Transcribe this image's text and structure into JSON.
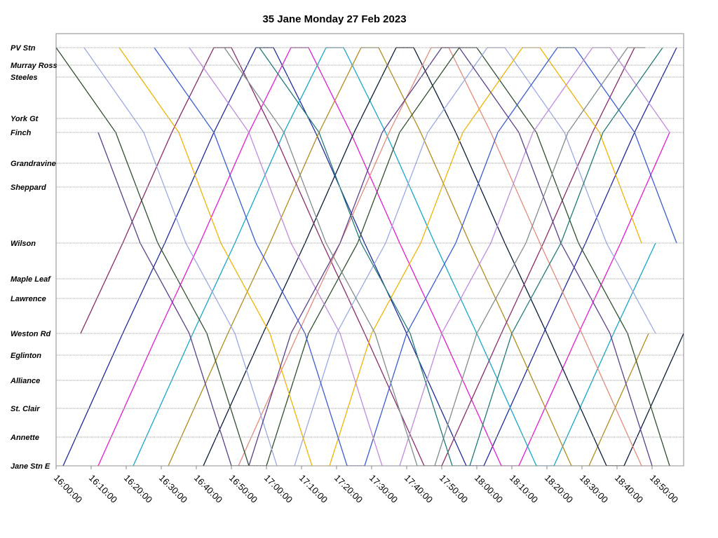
{
  "chart_data": {
    "type": "line",
    "title": "35 Jane Monday 27 Feb 2023",
    "xlim": [
      0,
      179
    ],
    "xticks": [
      {
        "value": 0,
        "label": "16:00:00"
      },
      {
        "value": 10,
        "label": "16:10:00"
      },
      {
        "value": 20,
        "label": "16:20:00"
      },
      {
        "value": 30,
        "label": "16:30:00"
      },
      {
        "value": 40,
        "label": "16:40:00"
      },
      {
        "value": 50,
        "label": "16:50:00"
      },
      {
        "value": 60,
        "label": "17:00:00"
      },
      {
        "value": 70,
        "label": "17:10:00"
      },
      {
        "value": 80,
        "label": "17:20:00"
      },
      {
        "value": 90,
        "label": "17:30:00"
      },
      {
        "value": 100,
        "label": "17:40:00"
      },
      {
        "value": 110,
        "label": "17:50:00"
      },
      {
        "value": 120,
        "label": "18:00:00"
      },
      {
        "value": 130,
        "label": "18:10:00"
      },
      {
        "value": 140,
        "label": "18:20:00"
      },
      {
        "value": 150,
        "label": "18:30:00"
      },
      {
        "value": 160,
        "label": "18:40:00"
      },
      {
        "value": 170,
        "label": "18:50:00"
      }
    ],
    "ylim": [
      0,
      617
    ],
    "yticks": [
      {
        "value": 0,
        "label": "Jane Stn E"
      },
      {
        "value": 41,
        "label": "Annette"
      },
      {
        "value": 82,
        "label": "St. Clair"
      },
      {
        "value": 122,
        "label": "Alliance"
      },
      {
        "value": 158,
        "label": "Eglinton"
      },
      {
        "value": 189,
        "label": "Weston Rd"
      },
      {
        "value": 239,
        "label": "Lawrence"
      },
      {
        "value": 267,
        "label": "Maple Leaf"
      },
      {
        "value": 318,
        "label": "Wilson"
      },
      {
        "value": 398,
        "label": "Sheppard"
      },
      {
        "value": 432,
        "label": "Grandravine"
      },
      {
        "value": 476,
        "label": "Finch"
      },
      {
        "value": 496,
        "label": "York Gt"
      },
      {
        "value": 555,
        "label": "Steeles"
      },
      {
        "value": 572,
        "label": "Murray Ross"
      },
      {
        "value": 597,
        "label": "PV Stn"
      }
    ],
    "grid": true,
    "series": [
      {
        "color": "#1f2a9c",
        "x": [
          2,
          19,
          31,
          45,
          57,
          62,
          74,
          88,
          100,
          117,
          122,
          139,
          151,
          165,
          177
        ],
        "values": [
          0,
          189,
          318,
          476,
          597,
          597,
          476,
          318,
          189,
          0,
          0,
          189,
          318,
          476,
          597
        ]
      },
      {
        "color": "#e21bd0",
        "x": [
          12,
          29,
          41,
          55,
          67,
          72,
          84,
          98,
          110,
          127,
          132,
          149,
          161,
          175
        ],
        "values": [
          0,
          189,
          318,
          476,
          597,
          597,
          476,
          318,
          189,
          0,
          0,
          189,
          318,
          476
        ]
      },
      {
        "color": "#16a6c9",
        "x": [
          22,
          39,
          51,
          65,
          77,
          82,
          94,
          108,
          120,
          137,
          142,
          159,
          171
        ],
        "values": [
          0,
          189,
          318,
          476,
          597,
          597,
          476,
          318,
          189,
          0,
          0,
          189,
          318
        ]
      },
      {
        "color": "#b08c1e",
        "x": [
          32,
          49,
          61,
          75,
          87,
          92,
          104,
          118,
          130,
          147,
          152,
          169
        ],
        "values": [
          0,
          189,
          318,
          476,
          597,
          597,
          476,
          318,
          189,
          0,
          0,
          189
        ]
      },
      {
        "color": "#0a1a3a",
        "x": [
          42,
          59,
          71,
          85,
          97,
          102,
          114,
          128,
          140,
          157,
          162,
          179
        ],
        "values": [
          0,
          189,
          318,
          476,
          597,
          597,
          476,
          318,
          189,
          0,
          0,
          189
        ]
      },
      {
        "color": "#8b2a6a",
        "x": [
          7,
          19,
          33,
          45,
          50,
          62,
          76,
          88,
          105,
          110,
          127,
          139,
          153,
          165
        ],
        "values": [
          189,
          318,
          476,
          597,
          597,
          476,
          318,
          189,
          0,
          0,
          189,
          318,
          476,
          597
        ]
      },
      {
        "color": "#e48a7a",
        "x": [
          52,
          69,
          81,
          95,
          107,
          112,
          124,
          138,
          150,
          167,
          172
        ],
        "values": [
          0,
          189,
          318,
          476,
          597,
          597,
          476,
          318,
          189,
          0,
          0
        ]
      },
      {
        "color": "#2f4f2f",
        "x": [
          0,
          17,
          29,
          43,
          55,
          60,
          72,
          86,
          98,
          115,
          120,
          137,
          149,
          163,
          175
        ],
        "values": [
          597,
          476,
          318,
          189,
          0,
          0,
          189,
          318,
          476,
          597,
          597,
          476,
          318,
          189,
          0
        ]
      },
      {
        "color": "#9aa8e6",
        "x": [
          8,
          25,
          37,
          51,
          63,
          68,
          80,
          94,
          106,
          123,
          128,
          145,
          157,
          171
        ],
        "values": [
          597,
          476,
          318,
          189,
          0,
          0,
          189,
          318,
          476,
          597,
          597,
          476,
          318,
          189
        ]
      },
      {
        "color": "#f0b400",
        "x": [
          18,
          35,
          47,
          61,
          73,
          78,
          90,
          104,
          116,
          133,
          138,
          155,
          167
        ],
        "values": [
          597,
          476,
          318,
          189,
          0,
          0,
          189,
          318,
          476,
          597,
          597,
          476,
          318
        ]
      },
      {
        "color": "#3b5bd6",
        "x": [
          28,
          45,
          57,
          71,
          83,
          88,
          100,
          114,
          126,
          143,
          148,
          165,
          177
        ],
        "values": [
          597,
          476,
          318,
          189,
          0,
          0,
          189,
          318,
          476,
          597,
          597,
          476,
          318
        ]
      },
      {
        "color": "#c08ae0",
        "x": [
          38,
          55,
          67,
          81,
          93,
          98,
          110,
          124,
          136,
          153,
          158,
          175
        ],
        "values": [
          597,
          476,
          318,
          189,
          0,
          0,
          189,
          318,
          476,
          597,
          597,
          476
        ]
      },
      {
        "color": "#5a3e8c",
        "x": [
          12,
          24,
          38,
          50,
          55,
          67,
          81,
          93,
          110,
          115,
          132,
          144,
          158,
          170
        ],
        "values": [
          476,
          318,
          189,
          0,
          0,
          189,
          318,
          476,
          597,
          597,
          476,
          318,
          189,
          0
        ]
      },
      {
        "color": "#7f8c8d",
        "x": [
          48,
          65,
          77,
          91,
          103,
          108,
          120,
          134,
          146,
          163,
          168
        ],
        "values": [
          597,
          476,
          318,
          189,
          0,
          0,
          189,
          318,
          476,
          597,
          597
        ]
      },
      {
        "color": "#1f7a7a",
        "x": [
          58,
          75,
          87,
          101,
          113,
          118,
          130,
          144,
          156,
          173
        ],
        "values": [
          597,
          476,
          318,
          189,
          0,
          0,
          189,
          318,
          476,
          597
        ]
      }
    ]
  }
}
